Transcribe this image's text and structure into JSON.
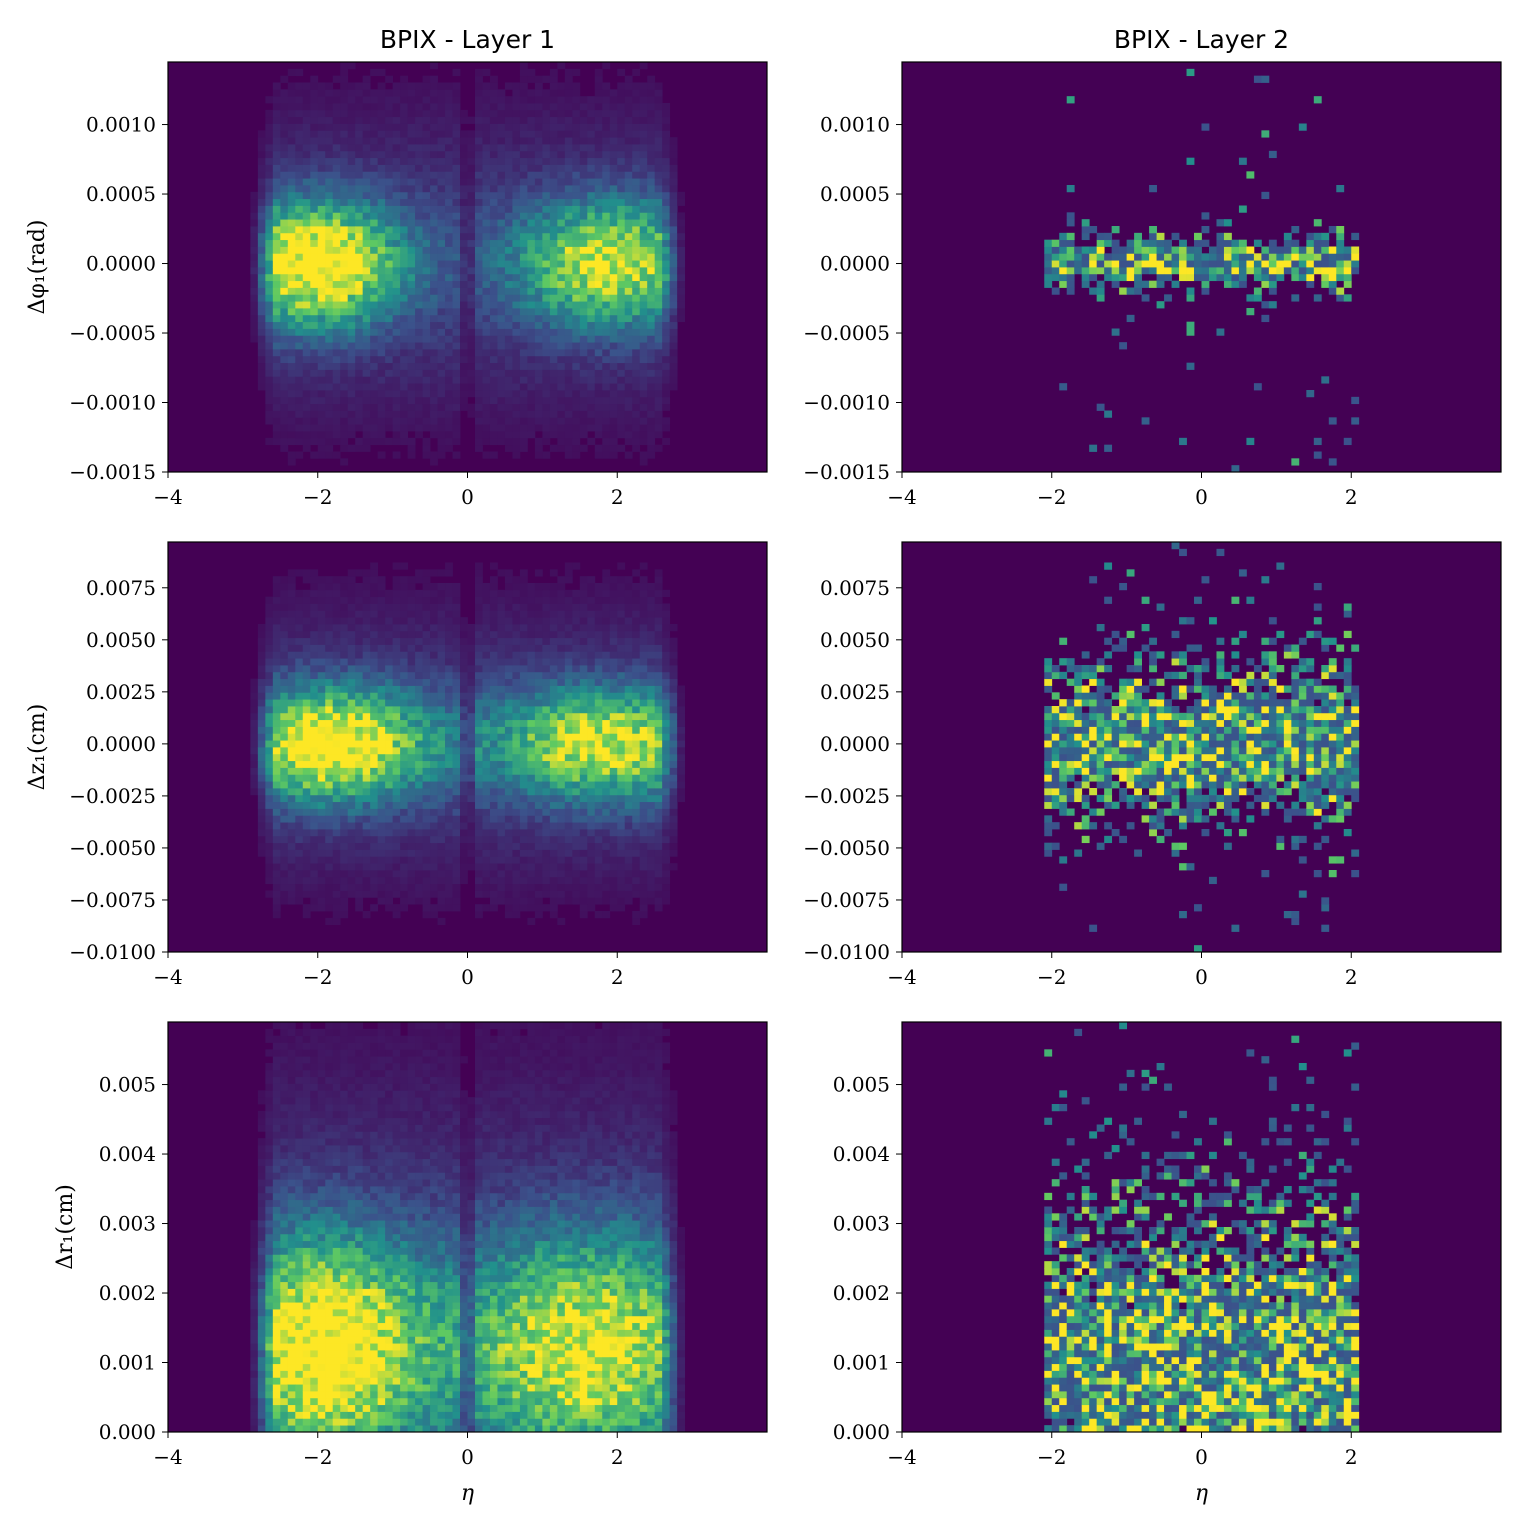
{
  "figure": {
    "column_titles": [
      "BPIX - Layer 1",
      "BPIX - Layer 2"
    ]
  },
  "colormap": [
    "#440154",
    "#3b528b",
    "#21918c",
    "#5ec962",
    "#fde725"
  ],
  "chart_data": [
    {
      "type": "heatmap",
      "title": "BPIX - Layer 1",
      "xlabel": "",
      "ylabel": "Δφ₁(rad)",
      "xlim": [
        -4,
        4
      ],
      "ylim": [
        -0.0015,
        0.00145
      ],
      "xticks": [
        -4,
        -2,
        0,
        2
      ],
      "xtick_labels": [
        "−4",
        "−2",
        "0",
        "2"
      ],
      "yticks": [
        0.001,
        0.0005,
        0.0,
        -0.0005,
        -0.001,
        -0.0015
      ],
      "ytick_labels": [
        "0.0010",
        "0.0005",
        "0.0000",
        "−0.0005",
        "−0.0010",
        "−0.0015"
      ],
      "x_bins": 80,
      "y_bins": 60,
      "eta_range": [
        -2.9,
        2.9
      ],
      "clusters": [
        {
          "x": -2.0,
          "y": 0.0,
          "sx": 0.45,
          "sy": 0.0003,
          "w": 1.0
        },
        {
          "x": 1.9,
          "y": 0.0,
          "sx": 0.5,
          "sy": 0.0003,
          "w": 0.8
        }
      ],
      "gap_at_zero": true
    },
    {
      "type": "heatmap",
      "title": "BPIX - Layer 2",
      "xlabel": "",
      "ylabel": "",
      "xlim": [
        -4,
        4
      ],
      "ylim": [
        -0.0015,
        0.00145
      ],
      "xticks": [
        -4,
        -2,
        0,
        2
      ],
      "xtick_labels": [
        "−4",
        "−2",
        "0",
        "2"
      ],
      "yticks": [
        0.001,
        0.0005,
        0.0,
        -0.0005,
        -0.001,
        -0.0015
      ],
      "ytick_labels": [
        "0.0010",
        "0.0005",
        "0.0000",
        "−0.0005",
        "−0.0010",
        "−0.0015"
      ],
      "x_bins": 80,
      "y_bins": 60,
      "eta_range": [
        -2.1,
        2.1
      ],
      "band": {
        "y": 0.0,
        "sy": 0.00012
      },
      "sparse": true
    },
    {
      "type": "heatmap",
      "title": "",
      "xlabel": "",
      "ylabel": "Δz₁(cm)",
      "xlim": [
        -4,
        4
      ],
      "ylim": [
        -0.01,
        0.0097
      ],
      "xticks": [
        -4,
        -2,
        0,
        2
      ],
      "xtick_labels": [
        "−4",
        "−2",
        "0",
        "2"
      ],
      "yticks": [
        0.0075,
        0.005,
        0.0025,
        0.0,
        -0.0025,
        -0.005,
        -0.0075,
        -0.01
      ],
      "ytick_labels": [
        "0.0075",
        "0.0050",
        "0.0025",
        "0.0000",
        "−0.0025",
        "−0.0050",
        "−0.0075",
        "−0.0100"
      ],
      "x_bins": 80,
      "y_bins": 60,
      "eta_range": [
        -2.9,
        2.9
      ],
      "clusters": [
        {
          "x": -1.8,
          "y": 0.0,
          "sx": 0.5,
          "sy": 0.0018,
          "w": 1.0
        },
        {
          "x": 1.8,
          "y": 0.0,
          "sx": 0.6,
          "sy": 0.0018,
          "w": 0.8
        }
      ],
      "gap_at_zero": true
    },
    {
      "type": "heatmap",
      "title": "",
      "xlabel": "",
      "ylabel": "",
      "xlim": [
        -4,
        4
      ],
      "ylim": [
        -0.01,
        0.0097
      ],
      "xticks": [
        -4,
        -2,
        0,
        2
      ],
      "xtick_labels": [
        "−4",
        "−2",
        "0",
        "2"
      ],
      "yticks": [
        0.0075,
        0.005,
        0.0025,
        0.0,
        -0.0025,
        -0.005,
        -0.0075,
        -0.01
      ],
      "ytick_labels": [
        "0.0075",
        "0.0050",
        "0.0025",
        "0.0000",
        "−0.0025",
        "−0.0050",
        "−0.0075",
        "−0.0100"
      ],
      "x_bins": 80,
      "y_bins": 60,
      "eta_range": [
        -2.1,
        2.1
      ],
      "band": {
        "y": 0.0,
        "sy": 0.0025
      },
      "sparse": true
    },
    {
      "type": "heatmap",
      "title": "",
      "xlabel": "η",
      "ylabel": "Δr₁(cm)",
      "xlim": [
        -4,
        4
      ],
      "ylim": [
        0.0,
        0.0059
      ],
      "xticks": [
        -4,
        -2,
        0,
        2
      ],
      "xtick_labels": [
        "−4",
        "−2",
        "0",
        "2"
      ],
      "yticks": [
        0.005,
        0.004,
        0.003,
        0.002,
        0.001,
        0.0
      ],
      "ytick_labels": [
        "0.005",
        "0.004",
        "0.003",
        "0.002",
        "0.001",
        "0.000"
      ],
      "x_bins": 80,
      "y_bins": 60,
      "eta_range": [
        -2.9,
        2.9
      ],
      "clusters": [
        {
          "x": -1.9,
          "y": 0.0012,
          "sx": 0.55,
          "sy": 0.0011,
          "w": 1.0
        },
        {
          "x": 1.6,
          "y": 0.0012,
          "sx": 0.7,
          "sy": 0.0011,
          "w": 0.85
        }
      ],
      "gap_at_zero": true
    },
    {
      "type": "heatmap",
      "title": "",
      "xlabel": "η",
      "ylabel": "",
      "xlim": [
        -4,
        4
      ],
      "ylim": [
        0.0,
        0.0059
      ],
      "xticks": [
        -4,
        -2,
        0,
        2
      ],
      "xtick_labels": [
        "−4",
        "−2",
        "0",
        "2"
      ],
      "yticks": [
        0.005,
        0.004,
        0.003,
        0.002,
        0.001,
        0.0
      ],
      "ytick_labels": [
        "0.005",
        "0.004",
        "0.003",
        "0.002",
        "0.001",
        "0.000"
      ],
      "x_bins": 80,
      "y_bins": 60,
      "eta_range": [
        -2.1,
        2.1
      ],
      "band": {
        "y": 0.001,
        "sy": 0.0015
      },
      "sparse": true
    }
  ]
}
